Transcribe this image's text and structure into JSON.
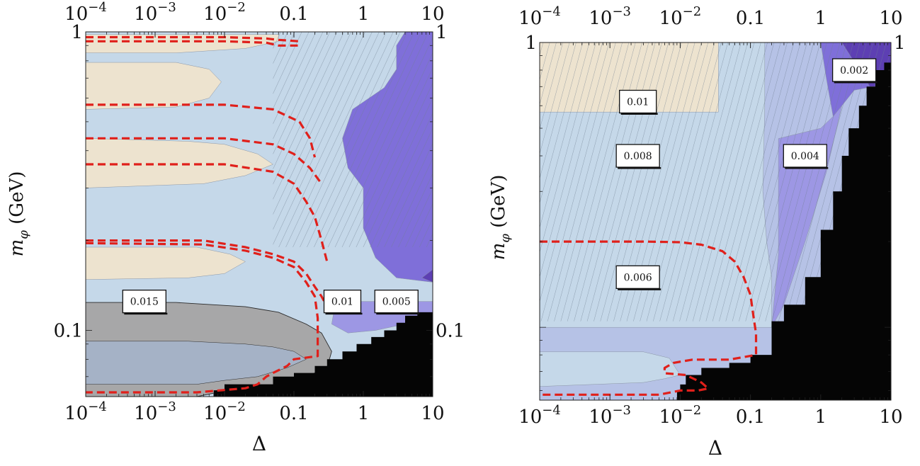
{
  "colors": {
    "tan": "#ede3cf",
    "lightblue": "#c5d8e9",
    "gray": "#a7a7a8",
    "bluegray": "#a5b2c6",
    "periwinkle": "#b6c2e6",
    "lightpurple": "#9d97e4",
    "purple": "#7f6fd9",
    "darkpurple": "#5d3fb3",
    "black": "#050505",
    "red_dashed": "#e0201b",
    "hatch": "#6f7f90"
  },
  "chart_data": [
    {
      "type": "contour",
      "xscale": "log",
      "yscale": "log",
      "xlim": [
        0.0001,
        10
      ],
      "ylim": [
        0.06,
        1
      ],
      "xlabel": "Δ",
      "ylabel": "m_φ (GeV)",
      "x_ticks": [
        {
          "v": 0.0001,
          "b": "10",
          "e": "−4"
        },
        {
          "v": 0.001,
          "b": "10",
          "e": "−3"
        },
        {
          "v": 0.01,
          "b": "10",
          "e": "−2"
        },
        {
          "v": 0.1,
          "b": "0.1",
          "e": ""
        },
        {
          "v": 1,
          "b": "1",
          "e": ""
        },
        {
          "v": 10,
          "b": "10",
          "e": ""
        }
      ],
      "y_ticks": [
        {
          "v": 0.1,
          "t": "0.1"
        },
        {
          "v": 1,
          "t": "1"
        }
      ],
      "contour_labels": [
        {
          "t": "0.015",
          "x": 0.0007,
          "y": 0.125
        },
        {
          "t": "0.01",
          "x": 0.5,
          "y": 0.125
        },
        {
          "t": "0.005",
          "x": 3.0,
          "y": 0.125
        }
      ],
      "regions": [
        {
          "color": "lightblue",
          "pts": [
            [
              0.0001,
              1
            ],
            [
              10,
              1
            ],
            [
              10,
              0.06
            ],
            [
              0.0001,
              0.06
            ]
          ]
        },
        {
          "color": "tan",
          "pts": [
            [
              0.0001,
              0.98
            ],
            [
              0.06,
              0.98
            ],
            [
              0.06,
              0.93
            ],
            [
              0.02,
              0.88
            ],
            [
              0.002,
              0.85
            ],
            [
              0.0001,
              0.85
            ]
          ]
        },
        {
          "color": "tan",
          "pts": [
            [
              0.0001,
              0.79
            ],
            [
              0.002,
              0.79
            ],
            [
              0.006,
              0.75
            ],
            [
              0.009,
              0.68
            ],
            [
              0.006,
              0.6
            ],
            [
              0.002,
              0.56
            ],
            [
              0.0001,
              0.55
            ]
          ]
        },
        {
          "color": "tan",
          "pts": [
            [
              0.0001,
              0.44
            ],
            [
              0.003,
              0.43
            ],
            [
              0.01,
              0.42
            ],
            [
              0.03,
              0.39
            ],
            [
              0.05,
              0.36
            ],
            [
              0.02,
              0.33
            ],
            [
              0.005,
              0.31
            ],
            [
              0.0001,
              0.3
            ]
          ]
        },
        {
          "color": "tan",
          "pts": [
            [
              0.0001,
              0.19
            ],
            [
              0.004,
              0.19
            ],
            [
              0.012,
              0.18
            ],
            [
              0.02,
              0.17
            ],
            [
              0.01,
              0.155
            ],
            [
              0.003,
              0.15
            ],
            [
              0.0001,
              0.148
            ]
          ]
        },
        {
          "color": "gray",
          "pts": [
            [
              0.0001,
              0.124
            ],
            [
              0.002,
              0.124
            ],
            [
              0.02,
              0.12
            ],
            [
              0.06,
              0.115
            ],
            [
              0.15,
              0.105
            ],
            [
              0.25,
              0.098
            ],
            [
              0.35,
              0.085
            ],
            [
              0.3,
              0.075
            ],
            [
              0.15,
              0.07
            ],
            [
              0.06,
              0.065
            ],
            [
              0.02,
              0.063
            ],
            [
              0.008,
              0.062
            ],
            [
              0.004,
              0.06
            ],
            [
              0.0001,
              0.06
            ]
          ]
        },
        {
          "color": "bluegray",
          "pts": [
            [
              0.0001,
              0.092
            ],
            [
              0.003,
              0.092
            ],
            [
              0.02,
              0.09
            ],
            [
              0.05,
              0.088
            ],
            [
              0.1,
              0.085
            ],
            [
              0.15,
              0.08
            ],
            [
              0.08,
              0.075
            ],
            [
              0.03,
              0.07
            ],
            [
              0.01,
              0.068
            ],
            [
              0.004,
              0.066
            ],
            [
              0.0001,
              0.066
            ]
          ]
        },
        {
          "color": "purple",
          "pts": [
            [
              4,
              1
            ],
            [
              10,
              1
            ],
            [
              10,
              0.145
            ],
            [
              3,
              0.15
            ],
            [
              1.5,
              0.175
            ],
            [
              1,
              0.22
            ],
            [
              1,
              0.3
            ],
            [
              0.6,
              0.35
            ],
            [
              0.5,
              0.44
            ],
            [
              0.7,
              0.55
            ],
            [
              2,
              0.65
            ],
            [
              3,
              0.75
            ],
            [
              3,
              0.9
            ]
          ]
        },
        {
          "color": "lightpurple",
          "pts": [
            [
              0.4,
              0.125
            ],
            [
              2,
              0.125
            ],
            [
              10,
              0.125
            ],
            [
              10,
              0.11
            ],
            [
              4,
              0.105
            ],
            [
              1.5,
              0.1
            ],
            [
              0.6,
              0.098
            ],
            [
              0.35,
              0.105
            ]
          ]
        },
        {
          "color": "darkpurple",
          "pts": [
            [
              10,
              0.16
            ],
            [
              10,
              0.145
            ],
            [
              7,
              0.15
            ]
          ]
        }
      ],
      "black_stairs": [
        [
          10,
          0.115
        ],
        [
          6,
          0.112
        ],
        [
          4,
          0.106
        ],
        [
          3,
          0.1
        ],
        [
          2,
          0.095
        ],
        [
          1.3,
          0.09
        ],
        [
          0.8,
          0.085
        ],
        [
          0.5,
          0.08
        ],
        [
          0.3,
          0.076
        ],
        [
          0.2,
          0.072
        ],
        [
          0.1,
          0.07
        ],
        [
          0.05,
          0.066
        ],
        [
          0.01,
          0.063
        ],
        [
          0.007,
          0.061
        ]
      ],
      "hatch_range": [
        [
          0.05,
          10
        ],
        [
          0.19,
          1
        ]
      ],
      "red_curves": [
        [
          [
            0.0001,
            0.96
          ],
          [
            0.01,
            0.96
          ],
          [
            0.04,
            0.95
          ],
          [
            0.06,
            0.94
          ],
          [
            0.12,
            0.93
          ]
        ],
        [
          [
            0.0001,
            0.93
          ],
          [
            0.01,
            0.93
          ],
          [
            0.04,
            0.92
          ],
          [
            0.06,
            0.9
          ],
          [
            0.12,
            0.9
          ]
        ],
        [
          [
            0.0001,
            0.57
          ],
          [
            0.01,
            0.57
          ],
          [
            0.05,
            0.55
          ],
          [
            0.12,
            0.5
          ],
          [
            0.17,
            0.44
          ],
          [
            0.2,
            0.38
          ]
        ],
        [
          [
            0.0001,
            0.44
          ],
          [
            0.01,
            0.44
          ],
          [
            0.05,
            0.42
          ],
          [
            0.1,
            0.39
          ],
          [
            0.17,
            0.35
          ],
          [
            0.25,
            0.31
          ]
        ],
        [
          [
            0.0001,
            0.36
          ],
          [
            0.01,
            0.36
          ],
          [
            0.05,
            0.34
          ],
          [
            0.1,
            0.31
          ],
          [
            0.15,
            0.27
          ],
          [
            0.2,
            0.24
          ],
          [
            0.25,
            0.2
          ],
          [
            0.3,
            0.17
          ]
        ],
        [
          [
            0.0001,
            0.2
          ],
          [
            0.005,
            0.2
          ],
          [
            0.02,
            0.19
          ],
          [
            0.05,
            0.18
          ],
          [
            0.1,
            0.17
          ],
          [
            0.15,
            0.155
          ],
          [
            0.2,
            0.14
          ],
          [
            0.25,
            0.13
          ],
          [
            0.3,
            0.12
          ]
        ],
        [
          [
            0.0001,
            0.196
          ],
          [
            0.005,
            0.194
          ],
          [
            0.02,
            0.185
          ],
          [
            0.05,
            0.175
          ],
          [
            0.1,
            0.163
          ],
          [
            0.15,
            0.145
          ],
          [
            0.2,
            0.13
          ],
          [
            0.22,
            0.11
          ],
          [
            0.22,
            0.082
          ],
          [
            0.1,
            0.08
          ],
          [
            0.08,
            0.076
          ],
          [
            0.05,
            0.072
          ],
          [
            0.04,
            0.07
          ],
          [
            0.03,
            0.066
          ],
          [
            0.02,
            0.064
          ],
          [
            0.004,
            0.062
          ],
          [
            0.0001,
            0.062
          ]
        ]
      ]
    },
    {
      "type": "contour",
      "xscale": "log",
      "yscale": "log",
      "xlim": [
        0.0001,
        10
      ],
      "ylim": [
        0.0555,
        1
      ],
      "xlabel": "Δ",
      "ylabel": "m_φ (GeV)",
      "x_ticks": [
        {
          "v": 0.0001,
          "b": "10",
          "e": "−4"
        },
        {
          "v": 0.001,
          "b": "10",
          "e": "−3"
        },
        {
          "v": 0.01,
          "b": "10",
          "e": "−2"
        },
        {
          "v": 0.1,
          "b": "0.1",
          "e": ""
        },
        {
          "v": 1,
          "b": "1",
          "e": ""
        },
        {
          "v": 10,
          "b": "10",
          "e": ""
        }
      ],
      "y_ticks": [
        {
          "v": 1,
          "t": "1"
        }
      ],
      "contour_labels": [
        {
          "t": "0.002",
          "x": 3.0,
          "y": 0.8
        },
        {
          "t": "0.01",
          "x": 0.0025,
          "y": 0.62
        },
        {
          "t": "0.008",
          "x": 0.0025,
          "y": 0.4
        },
        {
          "t": "0.004",
          "x": 0.6,
          "y": 0.4
        },
        {
          "t": "0.006",
          "x": 0.0025,
          "y": 0.15
        }
      ],
      "regions": [
        {
          "color": "periwinkle",
          "pts": [
            [
              0.0001,
              1
            ],
            [
              10,
              1
            ],
            [
              10,
              0.0555
            ],
            [
              0.0001,
              0.0555
            ]
          ]
        },
        {
          "color": "lightblue",
          "pts": [
            [
              0.0001,
              1
            ],
            [
              0.16,
              1
            ],
            [
              0.16,
              0.6
            ],
            [
              0.15,
              0.3
            ],
            [
              0.17,
              0.2
            ],
            [
              0.2,
              0.15
            ],
            [
              0.2,
              0.1
            ],
            [
              0.0001,
              0.1
            ]
          ]
        },
        {
          "color": "tan",
          "pts": [
            [
              0.0001,
              1
            ],
            [
              0.035,
              1
            ],
            [
              0.035,
              0.57
            ],
            [
              0.0001,
              0.57
            ]
          ]
        },
        {
          "color": "lightblue",
          "pts": [
            [
              0.0001,
              0.082
            ],
            [
              0.003,
              0.082
            ],
            [
              0.007,
              0.078
            ],
            [
              0.01,
              0.068
            ],
            [
              0.006,
              0.066
            ],
            [
              0.003,
              0.064
            ],
            [
              0.0001,
              0.062
            ]
          ]
        },
        {
          "color": "lightpurple",
          "pts": [
            [
              0.25,
              0.46
            ],
            [
              1,
              0.5
            ],
            [
              1.5,
              0.55
            ],
            [
              2,
              0.6
            ],
            [
              1.2,
              0.35
            ],
            [
              0.6,
              0.2
            ],
            [
              0.3,
              0.12
            ],
            [
              0.2,
              0.1
            ],
            [
              0.25,
              0.18
            ]
          ]
        },
        {
          "color": "purple",
          "pts": [
            [
              1,
              1
            ],
            [
              4,
              1
            ],
            [
              10,
              1
            ],
            [
              10,
              0.72
            ],
            [
              3,
              0.68
            ],
            [
              2,
              0.6
            ],
            [
              1.5,
              0.55
            ],
            [
              1.2,
              0.75
            ]
          ]
        },
        {
          "color": "darkpurple",
          "pts": [
            [
              2,
              1
            ],
            [
              10,
              1
            ],
            [
              10,
              0.7
            ],
            [
              5,
              0.7
            ]
          ]
        }
      ],
      "black_stairs": [
        [
          10,
          0.85
        ],
        [
          8,
          0.8
        ],
        [
          6,
          0.7
        ],
        [
          4.5,
          0.6
        ],
        [
          3.5,
          0.5
        ],
        [
          2.5,
          0.4
        ],
        [
          2,
          0.3
        ],
        [
          1.5,
          0.22
        ],
        [
          1,
          0.15
        ],
        [
          0.6,
          0.12
        ],
        [
          0.3,
          0.105
        ],
        [
          0.2,
          0.08
        ],
        [
          0.1,
          0.075
        ],
        [
          0.05,
          0.072
        ],
        [
          0.02,
          0.068
        ],
        [
          0.012,
          0.063
        ],
        [
          0.01,
          0.06
        ],
        [
          0.009,
          0.0555
        ]
      ],
      "hatch_range": [
        [
          0.0001,
          10
        ],
        [
          0.105,
          1
        ]
      ],
      "red_curves": [
        [
          [
            0.0001,
            0.2
          ],
          [
            0.003,
            0.2
          ],
          [
            0.01,
            0.199
          ],
          [
            0.02,
            0.195
          ],
          [
            0.04,
            0.185
          ],
          [
            0.06,
            0.17
          ],
          [
            0.08,
            0.15
          ],
          [
            0.1,
            0.13
          ],
          [
            0.11,
            0.11
          ],
          [
            0.12,
            0.095
          ],
          [
            0.12,
            0.08
          ],
          [
            0.05,
            0.077
          ],
          [
            0.015,
            0.077
          ],
          [
            0.008,
            0.075
          ],
          [
            0.006,
            0.072
          ],
          [
            0.006,
            0.069
          ],
          [
            0.012,
            0.068
          ],
          [
            0.02,
            0.064
          ],
          [
            0.025,
            0.061
          ],
          [
            0.018,
            0.06
          ],
          [
            0.01,
            0.06
          ],
          [
            0.005,
            0.058
          ],
          [
            0.0001,
            0.058
          ]
        ]
      ]
    }
  ]
}
